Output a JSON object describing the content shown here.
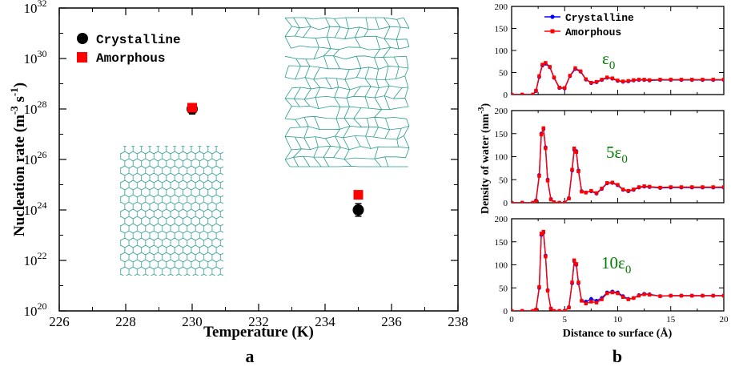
{
  "panel_a": {
    "letter": "a",
    "chart_data": {
      "type": "scatter",
      "xlabel": "Temperature (K)",
      "ylabel_main": "Nucleation rate (m",
      "ylabel_exp1": "-3",
      "ylabel_mid": " s",
      "ylabel_exp2": "-1",
      "ylabel_end": ")",
      "xlim": [
        226,
        238
      ],
      "ylim_log10": [
        20,
        32
      ],
      "x_ticks": [
        226,
        228,
        230,
        232,
        234,
        236,
        238
      ],
      "x_tick_labels": [
        "226",
        "228",
        "230",
        "232",
        "234",
        "236",
        "238"
      ],
      "y_ticks_log10": [
        20,
        22,
        24,
        26,
        28,
        30,
        32
      ],
      "y_tick_base": "10",
      "y_tick_exps": [
        "20",
        "22",
        "24",
        "26",
        "28",
        "30",
        "32"
      ],
      "series": [
        {
          "name": "Crystalline",
          "marker": "circle",
          "color": "#000000",
          "points": [
            {
              "x": 230,
              "log10y": 28.0,
              "err": 0.2
            },
            {
              "x": 235,
              "log10y": 24.0,
              "err": 0.25
            }
          ]
        },
        {
          "name": "Amorphous",
          "marker": "square",
          "color": "#ff0000",
          "points": [
            {
              "x": 230,
              "log10y": 28.05,
              "err": 0.15
            },
            {
              "x": 235,
              "log10y": 24.6,
              "err": 0.1
            }
          ]
        }
      ],
      "legend_position": "top-left",
      "insets": [
        "crystalline hexagonal surface",
        "amorphous network surface"
      ]
    }
  },
  "panel_b": {
    "letter": "b",
    "chart_data": {
      "type": "line",
      "xlabel": "Distance to surface (Å)",
      "ylabel": "Density of water (nm",
      "ylabel_exp": "-3",
      "ylabel_end": ")",
      "xlim": [
        0,
        20
      ],
      "ylim": [
        0,
        200
      ],
      "x_ticks": [
        0,
        5,
        10,
        15,
        20
      ],
      "x_tick_labels": [
        "0",
        "5",
        "10",
        "15",
        "20"
      ],
      "y_ticks": [
        0,
        50,
        100,
        150,
        200
      ],
      "y_tick_labels": [
        "0",
        "50",
        "100",
        "150",
        "200"
      ],
      "legend": [
        {
          "name": "Crystalline",
          "color": "#0000ff"
        },
        {
          "name": "Amorphous",
          "color": "#ff0000"
        }
      ],
      "colors": {
        "crystalline": "#0000ff",
        "amorphous": "#ff0000",
        "annotation": "#008000"
      },
      "subplots": [
        {
          "label_prefix": "",
          "label_eps": "ε",
          "label_sub": "0",
          "series": [
            {
              "name": "Crystalline",
              "x": [
                0,
                1,
                2,
                2.3,
                2.6,
                2.9,
                3.2,
                3.6,
                4,
                4.5,
                5,
                5.5,
                6,
                6.5,
                7,
                7.5,
                8,
                8.5,
                9,
                9.5,
                10,
                10.5,
                11,
                11.5,
                12,
                12.5,
                13,
                14,
                15,
                16,
                17,
                18,
                19,
                20
              ],
              "y": [
                0,
                0,
                0,
                8,
                40,
                66,
                70,
                62,
                38,
                15,
                14,
                42,
                58,
                52,
                34,
                26,
                28,
                33,
                38,
                36,
                31,
                29,
                30,
                32,
                33,
                33,
                32,
                33,
                33,
                33,
                33,
                33,
                33,
                33
              ]
            },
            {
              "name": "Amorphous",
              "x": [
                0,
                1,
                2,
                2.3,
                2.6,
                2.9,
                3.2,
                3.6,
                4,
                4.5,
                5,
                5.5,
                6,
                6.5,
                7,
                7.5,
                8,
                8.5,
                9,
                9.5,
                10,
                10.5,
                11,
                11.5,
                12,
                12.5,
                13,
                14,
                15,
                16,
                17,
                18,
                19,
                20
              ],
              "y": [
                0,
                0,
                0,
                9,
                42,
                68,
                72,
                63,
                39,
                16,
                15,
                43,
                60,
                53,
                35,
                27,
                29,
                34,
                39,
                37,
                32,
                30,
                31,
                33,
                34,
                34,
                33,
                34,
                34,
                34,
                34,
                34,
                34,
                34
              ]
            }
          ]
        },
        {
          "label_prefix": "5",
          "label_eps": "ε",
          "label_sub": "0",
          "series": [
            {
              "name": "Crystalline",
              "x": [
                0,
                1,
                2,
                2.3,
                2.6,
                2.8,
                3.0,
                3.2,
                3.4,
                3.7,
                4,
                4.5,
                5,
                5.4,
                5.7,
                5.9,
                6.1,
                6.3,
                6.6,
                7,
                7.5,
                8,
                8.5,
                9,
                9.5,
                10,
                10.5,
                11,
                11.5,
                12,
                12.5,
                13,
                14,
                15,
                16,
                17,
                18,
                19,
                20
              ],
              "y": [
                0,
                0,
                0,
                5,
                60,
                150,
                160,
                120,
                50,
                8,
                1,
                0,
                0,
                10,
                70,
                115,
                112,
                70,
                25,
                22,
                25,
                20,
                30,
                42,
                43,
                38,
                28,
                25,
                28,
                33,
                35,
                34,
                32,
                33,
                33,
                33,
                33,
                33,
                33
              ]
            },
            {
              "name": "Amorphous",
              "x": [
                0,
                1,
                2,
                2.3,
                2.6,
                2.8,
                3.0,
                3.2,
                3.4,
                3.7,
                4,
                4.5,
                5,
                5.4,
                5.7,
                5.9,
                6.1,
                6.3,
                6.6,
                7,
                7.5,
                8,
                8.5,
                9,
                9.5,
                10,
                10.5,
                11,
                11.5,
                12,
                12.5,
                13,
                14,
                15,
                16,
                17,
                18,
                19,
                20
              ],
              "y": [
                0,
                0,
                0,
                4,
                58,
                148,
                162,
                118,
                48,
                7,
                1,
                0,
                0,
                9,
                72,
                118,
                110,
                68,
                24,
                22,
                26,
                21,
                31,
                43,
                44,
                39,
                29,
                26,
                29,
                34,
                36,
                35,
                33,
                34,
                34,
                34,
                34,
                34,
                34
              ]
            }
          ]
        },
        {
          "label_prefix": "10",
          "label_eps": "ε",
          "label_sub": "0",
          "series": [
            {
              "name": "Crystalline",
              "x": [
                0,
                1,
                2,
                2.3,
                2.6,
                2.8,
                3.0,
                3.2,
                3.4,
                3.7,
                4,
                4.5,
                5,
                5.4,
                5.7,
                5.9,
                6.1,
                6.3,
                6.6,
                7,
                7.5,
                8,
                8.5,
                9,
                9.5,
                10,
                10.5,
                11,
                11.5,
                12,
                12.5,
                13,
                14,
                15,
                16,
                17,
                18,
                19,
                20
              ],
              "y": [
                0,
                0,
                0,
                3,
                50,
                165,
                170,
                120,
                45,
                5,
                0,
                0,
                0,
                8,
                60,
                108,
                100,
                60,
                22,
                20,
                26,
                22,
                28,
                40,
                42,
                40,
                32,
                26,
                28,
                34,
                37,
                36,
                32,
                33,
                33,
                33,
                33,
                33,
                33
              ]
            },
            {
              "name": "Amorphous",
              "x": [
                0,
                1,
                2,
                2.3,
                2.6,
                2.8,
                3.0,
                3.2,
                3.4,
                3.7,
                4,
                4.5,
                5,
                5.4,
                5.7,
                5.9,
                6.1,
                6.3,
                6.6,
                7,
                7.5,
                8,
                8.5,
                9,
                9.5,
                10,
                10.5,
                11,
                11.5,
                12,
                12.5,
                13,
                14,
                15,
                16,
                17,
                18,
                19,
                20
              ],
              "y": [
                0,
                0,
                0,
                3,
                52,
                168,
                172,
                118,
                44,
                5,
                0,
                0,
                0,
                7,
                62,
                110,
                102,
                62,
                22,
                16,
                20,
                18,
                25,
                38,
                40,
                38,
                30,
                25,
                28,
                33,
                36,
                35,
                32,
                33,
                33,
                33,
                33,
                33,
                33
              ]
            }
          ]
        }
      ]
    }
  }
}
